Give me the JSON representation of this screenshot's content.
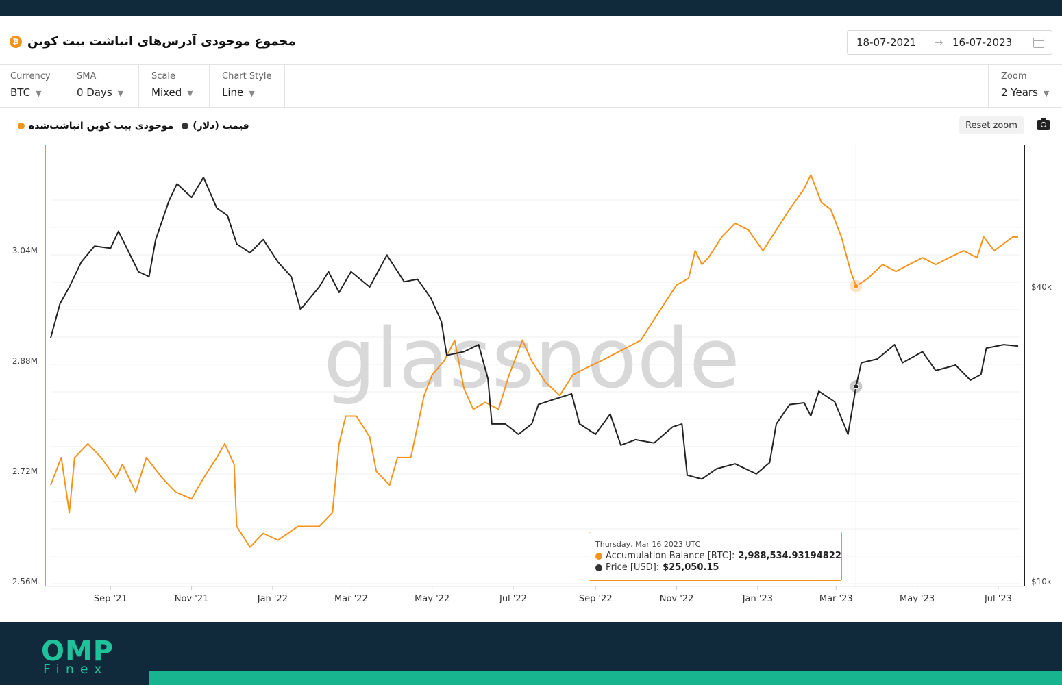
{
  "header": {
    "title": "مجموع موجودی آدرس‌های انباشت بیت کوین",
    "icon": "bitcoin-icon",
    "date_from": "18-07-2021",
    "date_arrow": "→",
    "date_to": "16-07-2023"
  },
  "controls": [
    {
      "label": "Currency",
      "value": "BTC"
    },
    {
      "label": "SMA",
      "value": "0 Days"
    },
    {
      "label": "Scale",
      "value": "Mixed"
    },
    {
      "label": "Chart Style",
      "value": "Line"
    }
  ],
  "zoom": {
    "label": "Zoom",
    "value": "2 Years"
  },
  "toolbar": {
    "reset_zoom": "Reset zoom"
  },
  "legend": {
    "balance": "موجودی بیت کوین انباشت‌شده",
    "price": "قیمت (دلار)"
  },
  "colors": {
    "balance": "#f7931a",
    "price": "#222222",
    "accent": "#18b48f",
    "dark": "#102a3b"
  },
  "watermark": "glassnode",
  "tooltip": {
    "date": "Thursday, Mar 16 2023 UTC",
    "balance_label": "Accumulation Balance [BTC]:",
    "balance_value": "2,988,534.93194822",
    "price_label": "Price [USD]:",
    "price_value": "$25,050.15"
  },
  "footer": {
    "brand": "OMP",
    "brand_sub": "Finex"
  },
  "chart_data": {
    "type": "line",
    "x_start": "2021-07-18",
    "x_end": "2023-07-16",
    "x_ticks": [
      {
        "label": "Sep '21",
        "date": "2021-09-01"
      },
      {
        "label": "Nov '21",
        "date": "2021-11-01"
      },
      {
        "label": "Jan '22",
        "date": "2022-01-01"
      },
      {
        "label": "Mar '22",
        "date": "2022-03-01"
      },
      {
        "label": "May '22",
        "date": "2022-05-01"
      },
      {
        "label": "Jul '22",
        "date": "2022-07-01"
      },
      {
        "label": "Sep '22",
        "date": "2022-09-01"
      },
      {
        "label": "Nov '22",
        "date": "2022-11-01"
      },
      {
        "label": "Jan '23",
        "date": "2023-01-01"
      },
      {
        "label": "Mar '23",
        "date": "2023-03-01"
      },
      {
        "label": "May '23",
        "date": "2023-05-01"
      },
      {
        "label": "Jul '23",
        "date": "2023-07-01"
      }
    ],
    "y_left": {
      "ticks": [
        "3.04M",
        "2.88M",
        "2.72M",
        "2.56M"
      ],
      "tick_values": [
        3040000,
        2880000,
        2720000,
        2560000
      ],
      "min": 2560000,
      "max": 3200000
    },
    "y_right": {
      "scale": "log",
      "ticks": [
        "$40k",
        "$10k"
      ],
      "tick_values": [
        40000,
        10000
      ],
      "min": 10000,
      "max": 100000
    },
    "grid": true,
    "series": [
      {
        "key": "balance",
        "axis": "left",
        "points": [
          [
            "2021-07-18",
            2700000
          ],
          [
            "2021-07-26",
            2740000
          ],
          [
            "2021-08-01",
            2660000
          ],
          [
            "2021-08-05",
            2740000
          ],
          [
            "2021-08-15",
            2760000
          ],
          [
            "2021-08-25",
            2740000
          ],
          [
            "2021-09-05",
            2710000
          ],
          [
            "2021-09-10",
            2730000
          ],
          [
            "2021-09-20",
            2690000
          ],
          [
            "2021-09-28",
            2740000
          ],
          [
            "2021-10-10",
            2710000
          ],
          [
            "2021-10-20",
            2690000
          ],
          [
            "2021-11-01",
            2680000
          ],
          [
            "2021-11-10",
            2710000
          ],
          [
            "2021-11-20",
            2740000
          ],
          [
            "2021-11-26",
            2760000
          ],
          [
            "2021-12-03",
            2730000
          ],
          [
            "2021-12-05",
            2640000
          ],
          [
            "2021-12-15",
            2610000
          ],
          [
            "2021-12-25",
            2630000
          ],
          [
            "2022-01-05",
            2620000
          ],
          [
            "2022-01-20",
            2640000
          ],
          [
            "2022-02-05",
            2640000
          ],
          [
            "2022-02-15",
            2660000
          ],
          [
            "2022-02-20",
            2760000
          ],
          [
            "2022-02-25",
            2800000
          ],
          [
            "2022-03-05",
            2800000
          ],
          [
            "2022-03-15",
            2770000
          ],
          [
            "2022-03-20",
            2720000
          ],
          [
            "2022-03-30",
            2700000
          ],
          [
            "2022-04-05",
            2740000
          ],
          [
            "2022-04-15",
            2740000
          ],
          [
            "2022-04-25",
            2830000
          ],
          [
            "2022-05-01",
            2860000
          ],
          [
            "2022-05-10",
            2880000
          ],
          [
            "2022-05-18",
            2910000
          ],
          [
            "2022-05-25",
            2840000
          ],
          [
            "2022-06-01",
            2810000
          ],
          [
            "2022-06-10",
            2820000
          ],
          [
            "2022-06-20",
            2810000
          ],
          [
            "2022-06-28",
            2860000
          ],
          [
            "2022-07-08",
            2910000
          ],
          [
            "2022-07-15",
            2880000
          ],
          [
            "2022-07-25",
            2850000
          ],
          [
            "2022-08-05",
            2830000
          ],
          [
            "2022-08-15",
            2860000
          ],
          [
            "2022-08-25",
            2870000
          ],
          [
            "2022-09-05",
            2880000
          ],
          [
            "2022-09-15",
            2890000
          ],
          [
            "2022-09-25",
            2900000
          ],
          [
            "2022-10-05",
            2910000
          ],
          [
            "2022-10-15",
            2940000
          ],
          [
            "2022-10-25",
            2970000
          ],
          [
            "2022-11-01",
            2990000
          ],
          [
            "2022-11-10",
            3000000
          ],
          [
            "2022-11-15",
            3040000
          ],
          [
            "2022-11-20",
            3020000
          ],
          [
            "2022-11-25",
            3030000
          ],
          [
            "2022-12-05",
            3060000
          ],
          [
            "2022-12-15",
            3080000
          ],
          [
            "2022-12-25",
            3070000
          ],
          [
            "2023-01-05",
            3040000
          ],
          [
            "2023-01-15",
            3070000
          ],
          [
            "2023-01-25",
            3100000
          ],
          [
            "2023-02-05",
            3130000
          ],
          [
            "2023-02-10",
            3150000
          ],
          [
            "2023-02-18",
            3110000
          ],
          [
            "2023-02-25",
            3100000
          ],
          [
            "2023-03-05",
            3060000
          ],
          [
            "2023-03-12",
            3010000
          ],
          [
            "2023-03-16",
            2988535
          ],
          [
            "2023-03-25",
            3000000
          ],
          [
            "2023-04-05",
            3020000
          ],
          [
            "2023-04-15",
            3010000
          ],
          [
            "2023-04-25",
            3020000
          ],
          [
            "2023-05-05",
            3030000
          ],
          [
            "2023-05-15",
            3020000
          ],
          [
            "2023-05-25",
            3030000
          ],
          [
            "2023-06-05",
            3040000
          ],
          [
            "2023-06-15",
            3030000
          ],
          [
            "2023-06-20",
            3060000
          ],
          [
            "2023-06-28",
            3040000
          ],
          [
            "2023-07-05",
            3050000
          ],
          [
            "2023-07-12",
            3060000
          ],
          [
            "2023-07-16",
            3060000
          ]
        ]
      },
      {
        "key": "price",
        "axis": "right",
        "points": [
          [
            "2021-07-18",
            31500
          ],
          [
            "2021-07-25",
            37000
          ],
          [
            "2021-08-01",
            40000
          ],
          [
            "2021-08-10",
            45000
          ],
          [
            "2021-08-20",
            48500
          ],
          [
            "2021-09-01",
            48000
          ],
          [
            "2021-09-07",
            52000
          ],
          [
            "2021-09-15",
            47000
          ],
          [
            "2021-09-22",
            43000
          ],
          [
            "2021-09-30",
            42000
          ],
          [
            "2021-10-05",
            50000
          ],
          [
            "2021-10-15",
            60000
          ],
          [
            "2021-10-21",
            65000
          ],
          [
            "2021-11-01",
            61000
          ],
          [
            "2021-11-10",
            67000
          ],
          [
            "2021-11-20",
            58000
          ],
          [
            "2021-11-28",
            56000
          ],
          [
            "2021-12-05",
            49000
          ],
          [
            "2021-12-15",
            47000
          ],
          [
            "2021-12-25",
            50000
          ],
          [
            "2022-01-05",
            45000
          ],
          [
            "2022-01-15",
            42000
          ],
          [
            "2022-01-22",
            36000
          ],
          [
            "2022-02-05",
            40000
          ],
          [
            "2022-02-12",
            43000
          ],
          [
            "2022-02-20",
            39000
          ],
          [
            "2022-03-01",
            43000
          ],
          [
            "2022-03-15",
            40000
          ],
          [
            "2022-03-28",
            46500
          ],
          [
            "2022-04-10",
            41000
          ],
          [
            "2022-04-20",
            41500
          ],
          [
            "2022-04-30",
            38000
          ],
          [
            "2022-05-08",
            34000
          ],
          [
            "2022-05-12",
            29000
          ],
          [
            "2022-05-25",
            29500
          ],
          [
            "2022-06-05",
            30500
          ],
          [
            "2022-06-12",
            26000
          ],
          [
            "2022-06-15",
            21000
          ],
          [
            "2022-06-25",
            21000
          ],
          [
            "2022-07-05",
            20000
          ],
          [
            "2022-07-15",
            21000
          ],
          [
            "2022-07-20",
            23000
          ],
          [
            "2022-07-30",
            23500
          ],
          [
            "2022-08-14",
            24200
          ],
          [
            "2022-08-20",
            21000
          ],
          [
            "2022-09-01",
            20000
          ],
          [
            "2022-09-12",
            22000
          ],
          [
            "2022-09-20",
            19000
          ],
          [
            "2022-10-01",
            19500
          ],
          [
            "2022-10-15",
            19200
          ],
          [
            "2022-10-29",
            20700
          ],
          [
            "2022-11-05",
            21000
          ],
          [
            "2022-11-09",
            16500
          ],
          [
            "2022-11-20",
            16200
          ],
          [
            "2022-12-01",
            17000
          ],
          [
            "2022-12-15",
            17400
          ],
          [
            "2022-12-31",
            16600
          ],
          [
            "2023-01-10",
            17500
          ],
          [
            "2023-01-15",
            21000
          ],
          [
            "2023-01-25",
            23000
          ],
          [
            "2023-02-05",
            23200
          ],
          [
            "2023-02-10",
            21800
          ],
          [
            "2023-02-16",
            24500
          ],
          [
            "2023-02-28",
            23300
          ],
          [
            "2023-03-10",
            20000
          ],
          [
            "2023-03-16",
            25050
          ],
          [
            "2023-03-20",
            28000
          ],
          [
            "2023-04-01",
            28500
          ],
          [
            "2023-04-14",
            30500
          ],
          [
            "2023-04-20",
            28000
          ],
          [
            "2023-05-05",
            29500
          ],
          [
            "2023-05-15",
            27000
          ],
          [
            "2023-05-30",
            27700
          ],
          [
            "2023-06-10",
            25800
          ],
          [
            "2023-06-18",
            26500
          ],
          [
            "2023-06-22",
            30000
          ],
          [
            "2023-07-05",
            30500
          ],
          [
            "2023-07-16",
            30300
          ]
        ]
      }
    ],
    "crosshair_date": "2023-03-16"
  }
}
